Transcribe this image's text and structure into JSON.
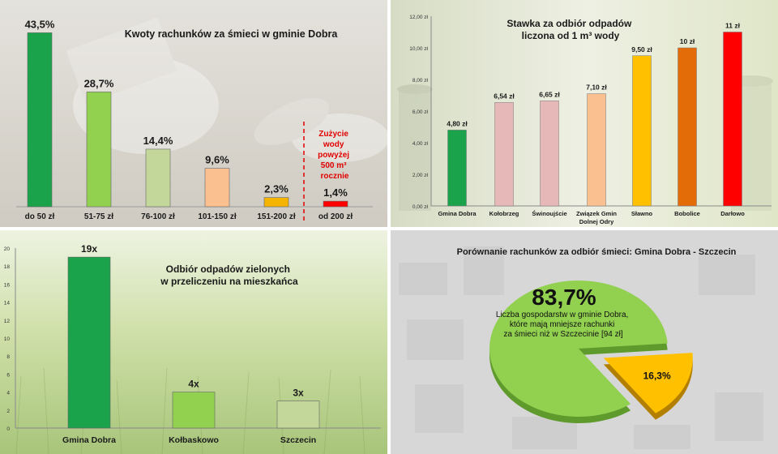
{
  "colors": {
    "dark_green": "#1aa34a",
    "light_green": "#92d050",
    "pale_green": "#c4d79b",
    "salmon": "#fac090",
    "amber": "#f4b400",
    "red": "#ff0000",
    "pink": "#e6b9b8",
    "orange": "#e36c09",
    "yellow": "#ffc000"
  },
  "chart_data": [
    {
      "type": "bar",
      "title": "Kwoty rachunków za śmieci w gminie Dobra",
      "categories": [
        "do 50 zł",
        "51-75 zł",
        "76-100 zł",
        "101-150 zł",
        "151-200 zł",
        "od 200 zł"
      ],
      "values": [
        43.5,
        28.7,
        14.4,
        9.6,
        2.3,
        1.4
      ],
      "value_labels": [
        "43,5%",
        "28,7%",
        "14,4%",
        "9,6%",
        "2,3%",
        "1,4%"
      ],
      "annotation": [
        "Zużycie",
        "wody",
        "powyżej",
        "500 m³",
        "rocznie"
      ],
      "ylim": [
        0,
        45
      ]
    },
    {
      "type": "bar",
      "title": [
        "Stawka za odbiór odpadów",
        "liczona od 1 m³ wody"
      ],
      "categories": [
        [
          "Gmina Dobra"
        ],
        [
          "Kołobrzeg"
        ],
        [
          "Świnoujście"
        ],
        [
          "Związek Gmin",
          "Dolnej Odry"
        ],
        [
          "Sławno"
        ],
        [
          "Bobolice"
        ],
        [
          "Darłowo"
        ]
      ],
      "values": [
        4.8,
        6.54,
        6.65,
        7.1,
        9.5,
        10,
        11
      ],
      "value_labels": [
        "4,80 zł",
        "6,54 zł",
        "6,65 zł",
        "7,10 zł",
        "9,50 zł",
        "10 zł",
        "11 zł"
      ],
      "ylim": [
        0,
        12
      ],
      "yticks": [
        "0,00 zł",
        "2,00 zł",
        "4,00 zł",
        "6,00 zł",
        "8,00 zł",
        "10,00 zł",
        "12,00 zł"
      ],
      "grid": false
    },
    {
      "type": "bar",
      "title": [
        "Odbiór odpadów zielonych",
        "w przeliczeniu na mieszkańca"
      ],
      "categories": [
        "Gmina Dobra",
        "Kołbaskowo",
        "Szczecin"
      ],
      "values": [
        19,
        4,
        3
      ],
      "value_labels": [
        "19x",
        "4x",
        "3x"
      ],
      "ylim": [
        0,
        20
      ],
      "yticks": [
        "0",
        "2",
        "4",
        "6",
        "8",
        "10",
        "12",
        "14",
        "16",
        "18",
        "20"
      ]
    },
    {
      "type": "pie",
      "title": "Porównanie rachunków za odbiór śmieci: Gmina Dobra - Szczecin",
      "values": [
        83.7,
        16.3
      ],
      "value_labels": [
        "83,7%",
        "16,3%"
      ],
      "main_description": [
        "Liczba gospodarstw w gminie Dobra,",
        "które mają mniejsze rachunki",
        "za śmieci niż w Szczecinie [94 zł]"
      ]
    }
  ]
}
